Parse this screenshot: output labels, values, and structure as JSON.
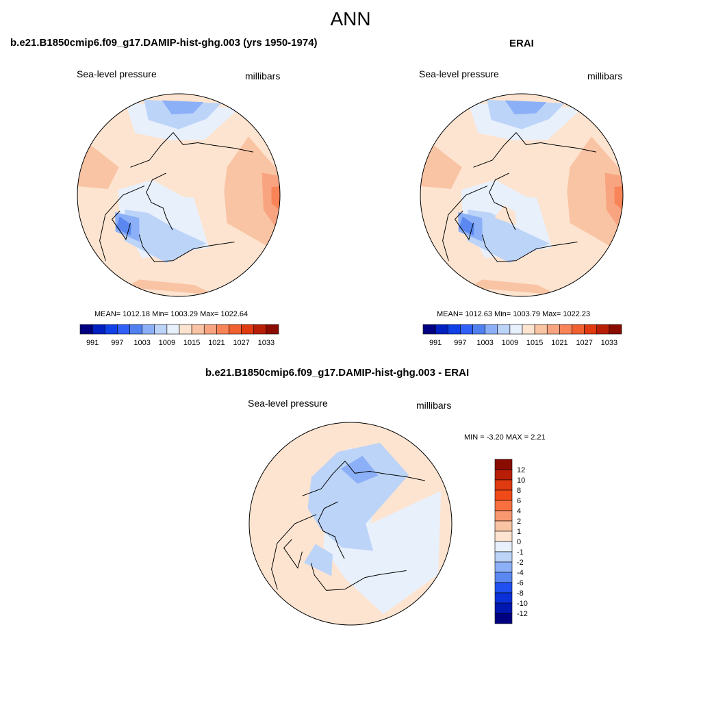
{
  "main_title": "ANN",
  "panels": {
    "model": {
      "title": "b.e21.B1850cmip6.f09_g17.DAMIP-hist-ghg.003 (yrs 1950-1974)",
      "left_label": "Sea-level pressure",
      "right_label": "millibars",
      "stats": "MEAN= 1012.18  Min= 1003.29  Max= 1022.64"
    },
    "obs": {
      "title": "ERAI",
      "left_label": "Sea-level pressure",
      "right_label": "millibars",
      "stats": "MEAN= 1012.63  Min= 1003.79  Max= 1022.23"
    },
    "diff": {
      "title": "b.e21.B1850cmip6.f09_g17.DAMIP-hist-ghg.003 - ERAI",
      "left_label": "Sea-level pressure",
      "right_label": "millibars",
      "stats": "MIN =  -3.20 MAX =   2.21"
    }
  },
  "chart_data": [
    {
      "type": "heatmap",
      "projection": "north-polar-stereographic",
      "title": "b.e21.B1850cmip6.f09_g17.DAMIP-hist-ghg.003 (yrs 1950-1974)",
      "variable": "Sea-level pressure",
      "units": "millibars",
      "mean": 1012.18,
      "min": 1003.29,
      "max": 1022.64,
      "colorbar": {
        "orientation": "horizontal",
        "tick_labels": [
          "991",
          "997",
          "1003",
          "1009",
          "1015",
          "1021",
          "1027",
          "1033"
        ],
        "colors": [
          "#000080",
          "#0020c0",
          "#1040e8",
          "#3060f8",
          "#5080f0",
          "#8cb0f8",
          "#bcd4f8",
          "#e8f0fc",
          "#fde4d0",
          "#f9c4a4",
          "#f8a480",
          "#f88458",
          "#f06030",
          "#e03a10",
          "#b81e06",
          "#8a0b00"
        ]
      }
    },
    {
      "type": "heatmap",
      "projection": "north-polar-stereographic",
      "title": "ERAI",
      "variable": "Sea-level pressure",
      "units": "millibars",
      "mean": 1012.63,
      "min": 1003.79,
      "max": 1022.23,
      "colorbar": {
        "orientation": "horizontal",
        "tick_labels": [
          "991",
          "997",
          "1003",
          "1009",
          "1015",
          "1021",
          "1027",
          "1033"
        ],
        "colors": [
          "#000080",
          "#0020c0",
          "#1040e8",
          "#3060f8",
          "#5080f0",
          "#8cb0f8",
          "#bcd4f8",
          "#e8f0fc",
          "#fde4d0",
          "#f9c4a4",
          "#f8a480",
          "#f88458",
          "#f06030",
          "#e03a10",
          "#b81e06",
          "#8a0b00"
        ]
      }
    },
    {
      "type": "heatmap",
      "projection": "north-polar-stereographic",
      "title": "b.e21.B1850cmip6.f09_g17.DAMIP-hist-ghg.003 - ERAI",
      "variable": "Sea-level pressure",
      "units": "millibars",
      "min": -3.2,
      "max": 2.21,
      "colorbar": {
        "orientation": "vertical",
        "tick_labels": [
          "12",
          "10",
          "8",
          "6",
          "4",
          "2",
          "1",
          "0",
          "-1",
          "-2",
          "-4",
          "-6",
          "-8",
          "-10",
          "-12"
        ],
        "colors": [
          "#8a0b00",
          "#b81e06",
          "#e03a10",
          "#f04a18",
          "#f87040",
          "#f89870",
          "#f9c4a4",
          "#fde4d0",
          "#e8f0fc",
          "#bcd4f8",
          "#8cb0f8",
          "#5a88f0",
          "#2050f0",
          "#0a30d8",
          "#0018b0",
          "#000080"
        ]
      }
    }
  ]
}
